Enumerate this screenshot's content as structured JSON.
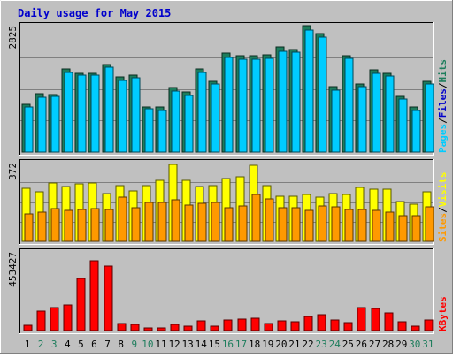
{
  "chart_data": {
    "type": "bar",
    "title": "Daily usage for May 2015",
    "categories": [
      "1",
      "2",
      "3",
      "4",
      "5",
      "6",
      "7",
      "8",
      "9",
      "10",
      "11",
      "12",
      "13",
      "14",
      "15",
      "16",
      "17",
      "18",
      "19",
      "20",
      "21",
      "22",
      "23",
      "24",
      "25",
      "26",
      "27",
      "28",
      "29",
      "30",
      "31"
    ],
    "weekend_days": [
      "2",
      "3",
      "9",
      "10",
      "16",
      "17",
      "23",
      "24",
      "30",
      "31"
    ],
    "colors": {
      "hits": "#1d7d5c",
      "files": "#00ccff",
      "sites": "#ff9900",
      "visits": "#ffff00",
      "kbytes": "#ff0000",
      "title": "#0000cc",
      "weekday_label": "#000000",
      "weekend_label": "#1d7d5c",
      "panel": "#c0c0c0"
    },
    "panels": [
      {
        "ylabel": "2825",
        "ymax": 2825,
        "legend": [
          {
            "text": "Pages",
            "color": "#00ccff"
          },
          {
            "text": "/",
            "color": "#000000"
          },
          {
            "text": "Files",
            "color": "#0000cc"
          },
          {
            "text": "/",
            "color": "#000000"
          },
          {
            "text": "Hits",
            "color": "#1d7d5c"
          }
        ],
        "series": [
          {
            "name": "Hits",
            "color": "#1d7d5c",
            "values": [
              1070,
              1300,
              1290,
              1850,
              1750,
              1760,
              1960,
              1680,
              1720,
              1010,
              1000,
              1450,
              1340,
              1850,
              1590,
              2220,
              2160,
              2160,
              2170,
              2360,
              2300,
              2820,
              2650,
              1460,
              2160,
              1530,
              1830,
              1760,
              1240,
              1010,
              1580
            ]
          },
          {
            "name": "Files",
            "color": "#00ccff",
            "values": [
              1000,
              1230,
              1240,
              1780,
              1710,
              1720,
              1890,
              1600,
              1660,
              960,
              920,
              1370,
              1270,
              1780,
              1530,
              2110,
              2070,
              2070,
              2100,
              2260,
              2230,
              2720,
              2570,
              1390,
              2100,
              1460,
              1760,
              1700,
              1180,
              920,
              1520
            ]
          }
        ]
      },
      {
        "ylabel": "372",
        "ymax": 372,
        "legend": [
          {
            "text": "Sites",
            "color": "#ff9900"
          },
          {
            "text": "/",
            "color": "#000000"
          },
          {
            "text": "Visits",
            "color": "#ffff00"
          }
        ],
        "series": [
          {
            "name": "Visits",
            "color": "#ffff00",
            "values": [
              250,
              235,
              275,
              260,
              270,
              275,
              225,
              265,
              240,
              265,
              290,
              362,
              290,
              260,
              263,
              295,
              305,
              358,
              262,
              212,
              215,
              222,
              210,
              225,
              222,
              255,
              245,
              245,
              190,
              175,
              233
            ]
          },
          {
            "name": "Sites",
            "color": "#ff9900",
            "values": [
              128,
              140,
              155,
              148,
              152,
              155,
              150,
              210,
              160,
              185,
              185,
              195,
              170,
              180,
              182,
              160,
              168,
              220,
              200,
              160,
              160,
              148,
              168,
              165,
              150,
              150,
              147,
              140,
              122,
              120,
              165
            ]
          }
        ]
      },
      {
        "ylabel": "453427",
        "ymax": 453427,
        "legend": [
          {
            "text": "KBytes",
            "color": "#ff0000"
          }
        ],
        "series": [
          {
            "name": "KBytes",
            "color": "#ff0000",
            "values": [
              30000,
              110000,
              130000,
              150000,
              300000,
              405000,
              370000,
              40000,
              38000,
              15000,
              15000,
              35000,
              25000,
              55000,
              25000,
              60000,
              65000,
              72000,
              40000,
              55000,
              50000,
              80000,
              90000,
              60000,
              45000,
              130000,
              125000,
              100000,
              50000,
              25000,
              60000
            ]
          }
        ]
      }
    ]
  }
}
